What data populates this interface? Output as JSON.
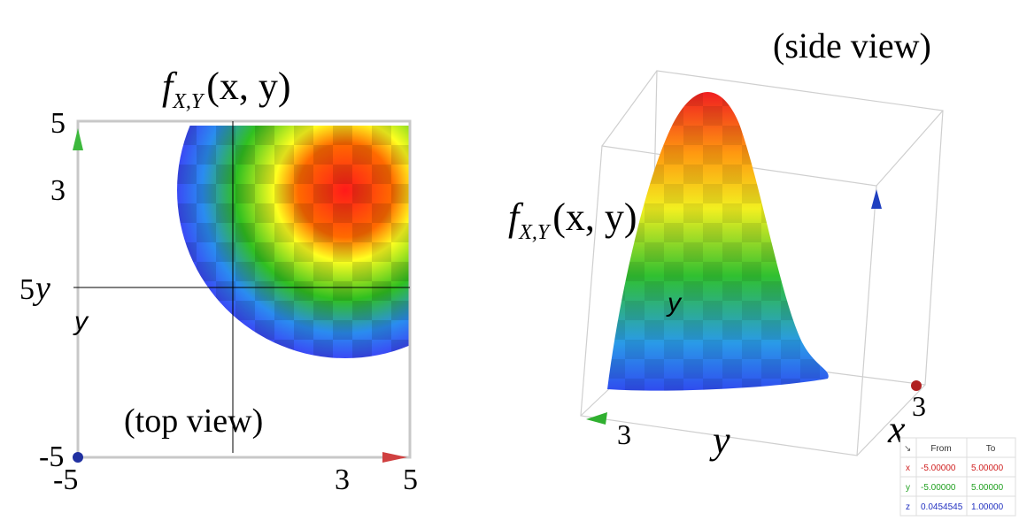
{
  "top_view": {
    "title": {
      "f": "f",
      "sub": "X,Y",
      "args": "(x, y)"
    },
    "caption": "(top view)",
    "y_axis_labels": [
      "5",
      "3"
    ],
    "y_label_serif": "y",
    "y_mid_label": "5",
    "y_label_sans": "y",
    "origin_label": "-5",
    "x_axis_labels": [
      "-5",
      "3",
      "5"
    ]
  },
  "side_view": {
    "caption": "(side view)",
    "title": {
      "f": "f",
      "sub": "X,Y",
      "args": "(x, y)"
    },
    "surface_label": "y",
    "y_tick": "3",
    "y_label": "y",
    "x_label": "x",
    "x_tick": "3"
  },
  "range_table": {
    "corner": "↘",
    "headers": [
      "From",
      "To"
    ],
    "rows": [
      [
        "x",
        "-5.00000",
        "5.00000"
      ],
      [
        "y",
        "-5.00000",
        "5.00000"
      ],
      [
        "z",
        "0.0454545",
        "1.00000"
      ]
    ]
  }
}
